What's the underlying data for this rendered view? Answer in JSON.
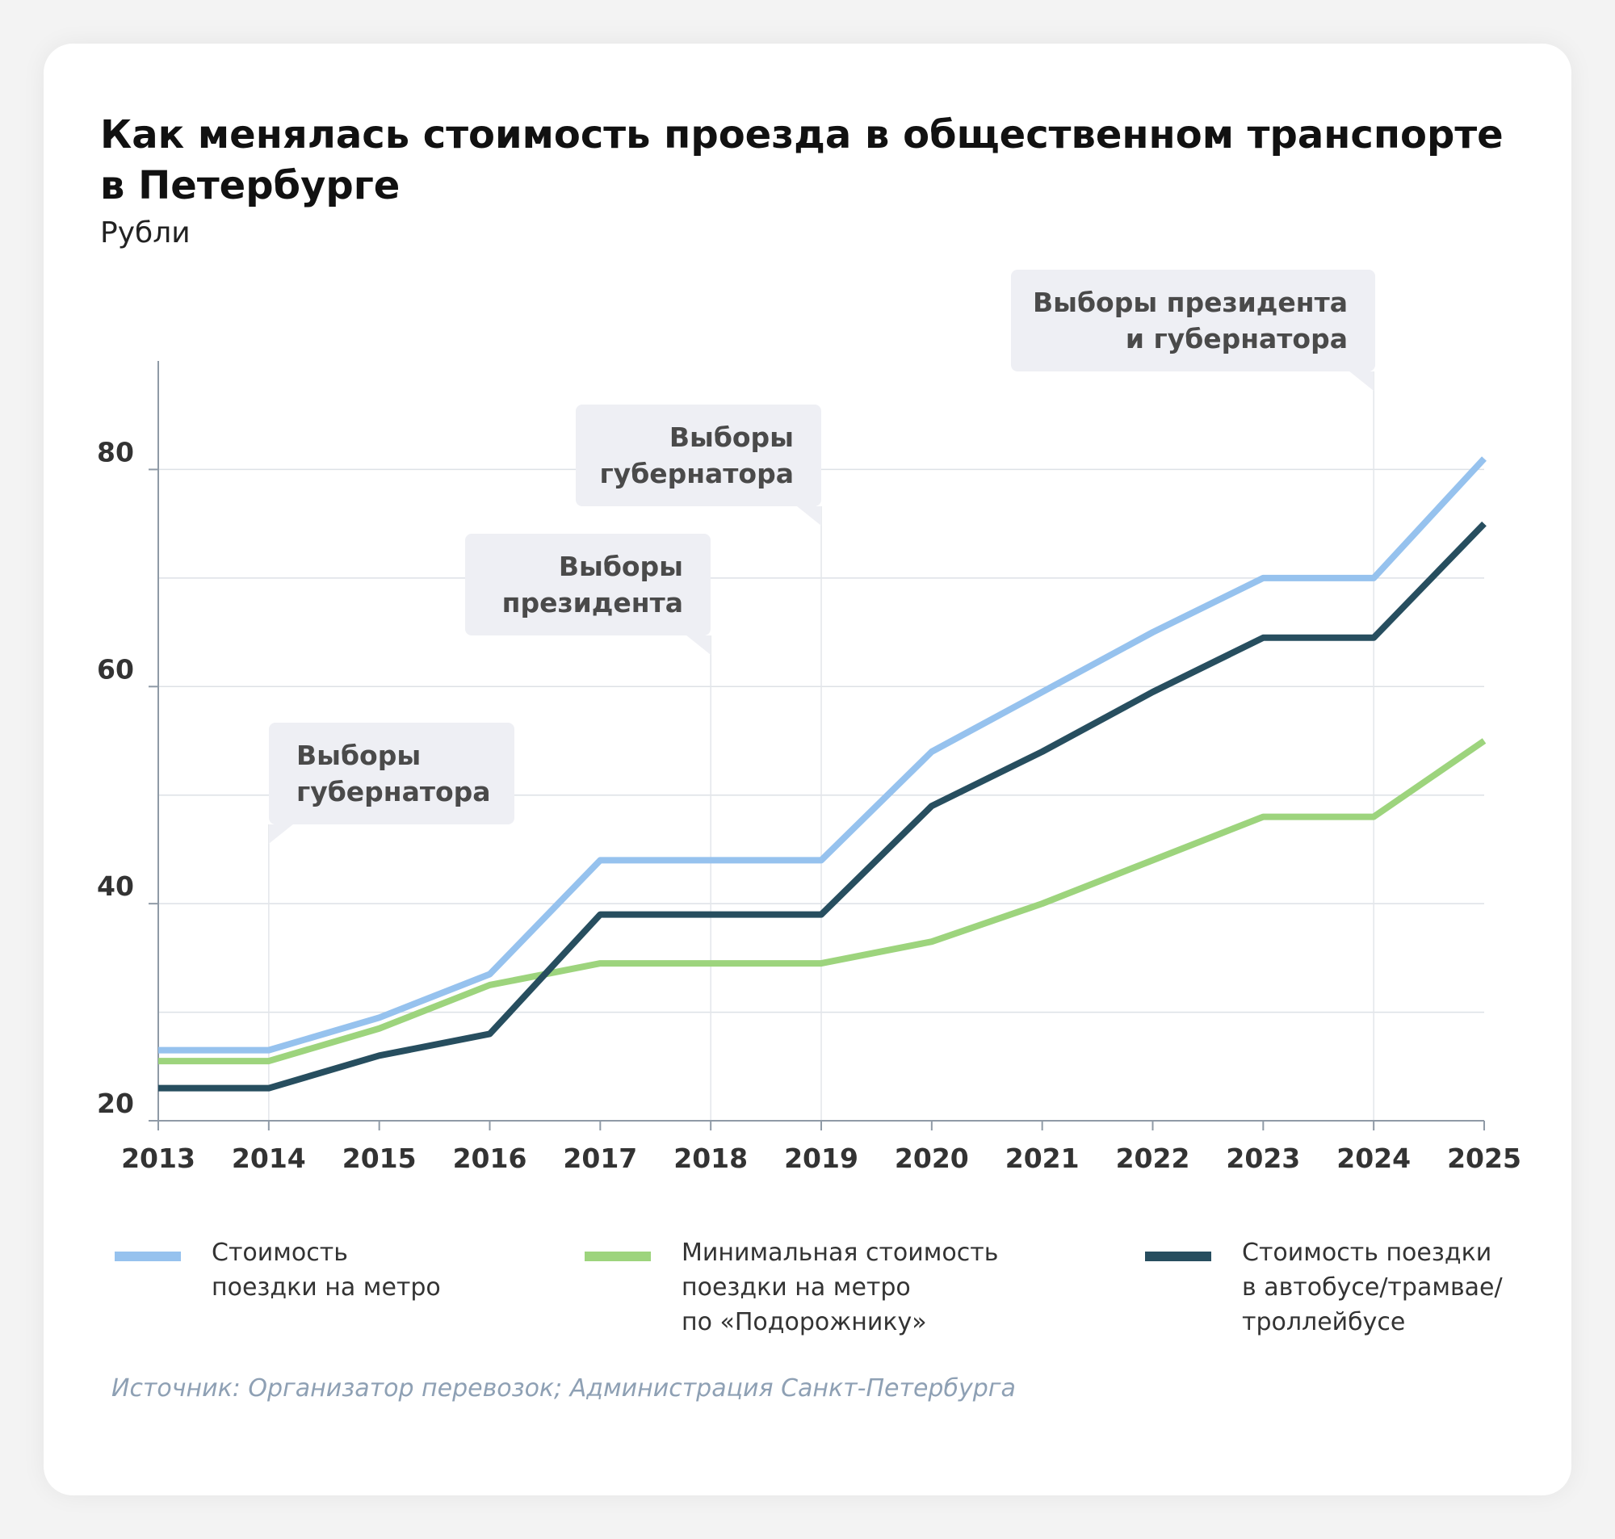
{
  "header": {
    "title_line1": "Как менялась стоимость проезда в общественном транспорте",
    "title_line2": "в Петербурге",
    "subtitle": "Рубли"
  },
  "chart_data": {
    "type": "line",
    "title": "Как менялась стоимость проезда в общественном транспорте в Петербурге",
    "subtitle": "Рубли",
    "ylabel": "Рубли",
    "x": [
      2013,
      2014,
      2015,
      2016,
      2017,
      2018,
      2019,
      2020,
      2021,
      2022,
      2023,
      2024,
      2025
    ],
    "ylim": [
      20,
      90
    ],
    "yticks": [
      20,
      40,
      60,
      80
    ],
    "grid": true,
    "series": [
      {
        "name": "Стоимость поездки на метро",
        "color": "#96c2ee",
        "values": [
          26.5,
          26.5,
          29.5,
          33.5,
          44,
          44,
          44,
          54,
          59.5,
          65,
          70,
          70,
          81
        ]
      },
      {
        "name": "Минимальная стоимость поездки на метро по «Подорожнику»",
        "color": "#9dd47d",
        "values": [
          25.5,
          25.5,
          28.5,
          32.5,
          34.5,
          34.5,
          34.5,
          36.5,
          40,
          44,
          48,
          48,
          55
        ]
      },
      {
        "name": "Стоимость поездки в автобусе/трамвае/троллейбусе",
        "color": "#274e5f",
        "values": [
          23,
          23,
          26,
          28,
          39,
          39,
          39,
          49,
          54,
          59.5,
          64.5,
          64.5,
          75
        ]
      }
    ],
    "annotations": [
      {
        "x": 2014,
        "lines": [
          "Выборы",
          "губернатора"
        ]
      },
      {
        "x": 2018,
        "lines": [
          "Выборы",
          "президента"
        ]
      },
      {
        "x": 2019,
        "lines": [
          "Выборы",
          "губернатора"
        ]
      },
      {
        "x": 2024,
        "lines": [
          "Выборы президента",
          "и губернатора"
        ]
      }
    ],
    "legend": "bottom"
  },
  "legend": {
    "metro": [
      "Стоимость",
      "поездки на метро"
    ],
    "podorozhnik": [
      "Минимальная стоимость",
      "поездки на метро",
      "по «Подорожнику»"
    ],
    "bus": [
      "Стоимость поездки",
      "в автобусе/трамвае/",
      "троллейбусе"
    ]
  },
  "footer": {
    "source": "Источник: Организатор перевозок; Администрация Санкт-Петербурга"
  }
}
